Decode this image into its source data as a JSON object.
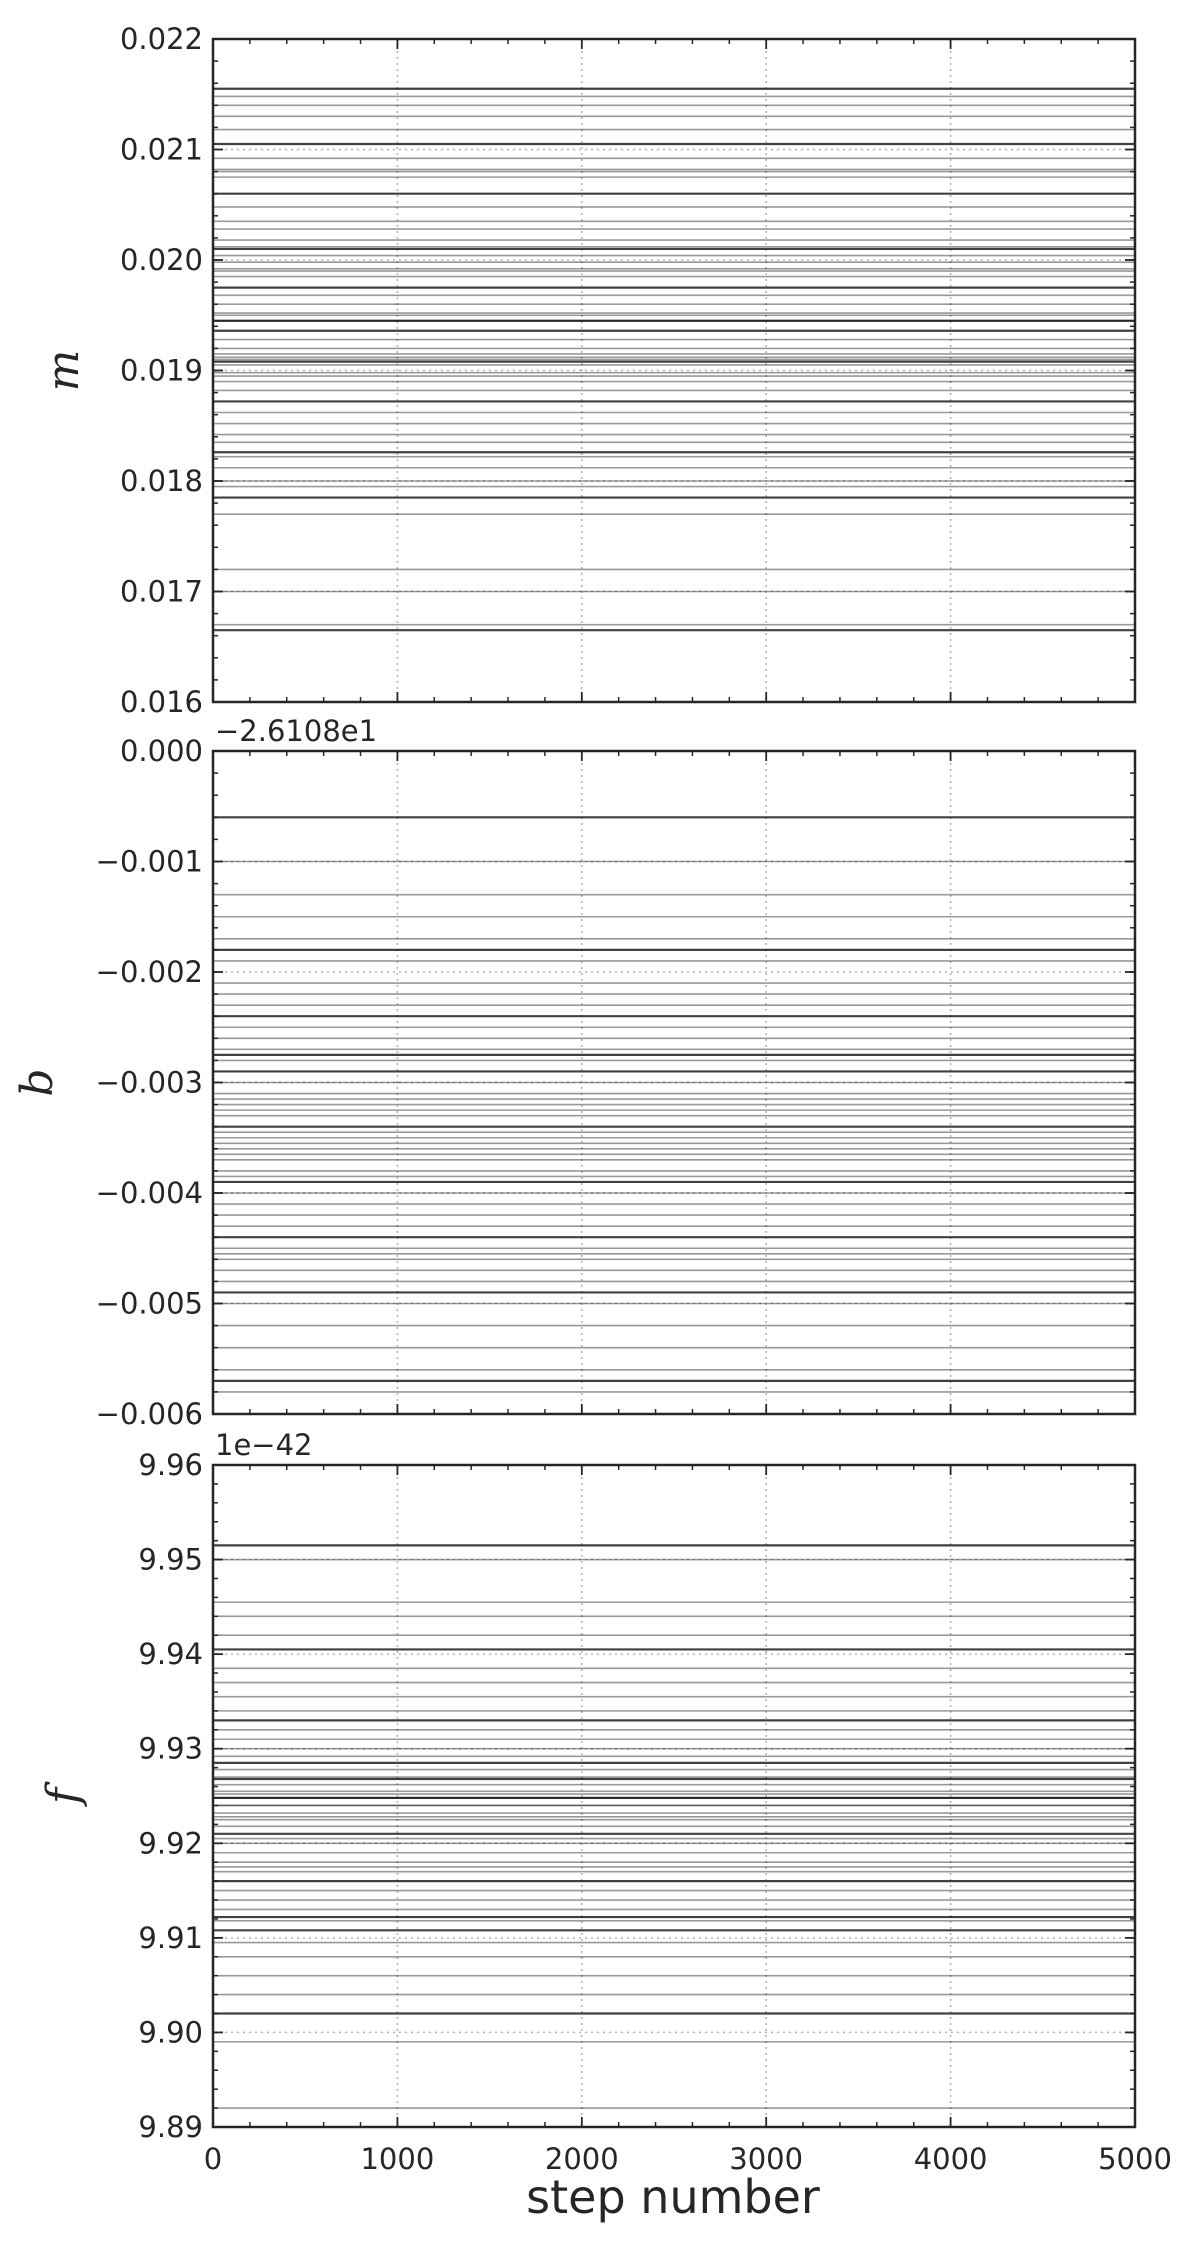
{
  "chart_data": [
    {
      "type": "line",
      "ylabel": "m",
      "xlabel": "",
      "xlim": [
        0,
        5000
      ],
      "ylim": [
        0.016,
        0.022
      ],
      "xticks": [
        0,
        1000,
        2000,
        3000,
        4000,
        5000
      ],
      "yticks": [
        0.016,
        0.017,
        0.018,
        0.019,
        0.02,
        0.021,
        0.022
      ],
      "ytick_labels": [
        "0.016",
        "0.017",
        "0.018",
        "0.019",
        "0.020",
        "0.021",
        "0.022"
      ],
      "offset_text": "",
      "grid": true,
      "series_color": "#000000",
      "walker_values": [
        0.02155,
        0.02148,
        0.0214,
        0.0213,
        0.02118,
        0.02105,
        0.02092,
        0.02082,
        0.0208,
        0.02075,
        0.0206,
        0.02048,
        0.02035,
        0.02028,
        0.02018,
        0.0201,
        0.02004,
        0.01998,
        0.01992,
        0.01985,
        0.01975,
        0.01968,
        0.0196,
        0.01952,
        0.01945,
        0.01936,
        0.01928,
        0.0192,
        0.01915,
        0.01912,
        0.01908,
        0.01905,
        0.01898,
        0.0189,
        0.01882,
        0.01872,
        0.01862,
        0.01852,
        0.01842,
        0.01835,
        0.01826,
        0.01822,
        0.01812,
        0.018,
        0.01795,
        0.01785,
        0.0177,
        0.0172,
        0.017,
        0.0167,
        0.01665,
        0.02012,
        0.0195,
        0.01895,
        0.0191,
        0.01945,
        0.0199
      ]
    },
    {
      "type": "line",
      "ylabel": "b",
      "xlabel": "",
      "xlim": [
        0,
        5000
      ],
      "ylim": [
        -0.006,
        0.0
      ],
      "xticks": [
        0,
        1000,
        2000,
        3000,
        4000,
        5000
      ],
      "yticks": [
        -0.006,
        -0.005,
        -0.004,
        -0.003,
        -0.002,
        -0.001,
        0.0
      ],
      "ytick_labels": [
        "−0.006",
        "−0.005",
        "−0.004",
        "−0.003",
        "−0.002",
        "−0.001",
        "0.000"
      ],
      "offset_text": "−2.6108e1",
      "grid": true,
      "series_color": "#000000",
      "walker_values": [
        -0.0006,
        -0.001,
        -0.0013,
        -0.0015,
        -0.0017,
        -0.0018,
        -0.0019,
        -0.0021,
        -0.0022,
        -0.0023,
        -0.0024,
        -0.0025,
        -0.0026,
        -0.0027,
        -0.0028,
        -0.0029,
        -0.003,
        -0.0031,
        -0.0032,
        -0.0033,
        -0.0034,
        -0.0035,
        -0.0036,
        -0.0037,
        -0.0038,
        -0.0039,
        -0.004,
        -0.0041,
        -0.0042,
        -0.0043,
        -0.0044,
        -0.0045,
        -0.0046,
        -0.0047,
        -0.0048,
        -0.0049,
        -0.005,
        -0.0052,
        -0.0054,
        -0.0056,
        -0.0057,
        -0.0058,
        -0.00315,
        -0.00355,
        -0.00345,
        -0.00275,
        -0.00385,
        -0.00455,
        -0.00325,
        -0.00365
      ]
    },
    {
      "type": "line",
      "ylabel": "f",
      "xlabel": "step number",
      "xlim": [
        0,
        5000
      ],
      "ylim": [
        9.89,
        9.96
      ],
      "xticks": [
        0,
        1000,
        2000,
        3000,
        4000,
        5000
      ],
      "xtick_labels": [
        "0",
        "1000",
        "2000",
        "3000",
        "4000",
        "5000"
      ],
      "yticks": [
        9.89,
        9.9,
        9.91,
        9.92,
        9.93,
        9.94,
        9.95,
        9.96
      ],
      "ytick_labels": [
        "9.89",
        "9.90",
        "9.91",
        "9.92",
        "9.93",
        "9.94",
        "9.95",
        "9.96"
      ],
      "offset_text": "1e−42",
      "grid": true,
      "series_color": "#000000",
      "walker_values": [
        9.9515,
        9.95,
        9.9455,
        9.944,
        9.942,
        9.9405,
        9.9385,
        9.937,
        9.9355,
        9.934,
        9.933,
        9.932,
        9.931,
        9.93,
        9.9292,
        9.9285,
        9.9278,
        9.927,
        9.9262,
        9.9255,
        9.9248,
        9.924,
        9.9232,
        9.9225,
        9.9218,
        9.921,
        9.92,
        9.919,
        9.918,
        9.917,
        9.916,
        9.915,
        9.914,
        9.913,
        9.9118,
        9.9108,
        9.9095,
        9.908,
        9.906,
        9.904,
        9.902,
        9.899,
        9.892,
        9.9248,
        9.9252,
        9.9268,
        9.924,
        9.9228,
        9.9205,
        9.9175,
        9.9122
      ]
    }
  ]
}
